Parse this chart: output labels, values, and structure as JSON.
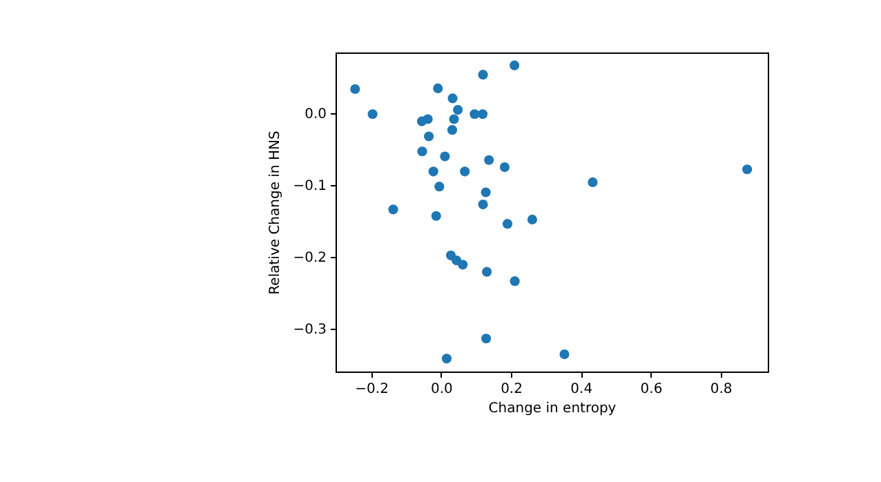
{
  "chart_data": {
    "type": "scatter",
    "xlabel": "Change in entropy",
    "ylabel": "Relative Change in HNS",
    "xlim": [
      -0.302,
      0.935
    ],
    "ylim": [
      -0.36,
      0.085
    ],
    "xticks": [
      {
        "value": -0.2,
        "label": "−0.2"
      },
      {
        "value": 0,
        "label": "0.0"
      },
      {
        "value": 0.2,
        "label": "0.2"
      },
      {
        "value": 0.4,
        "label": "0.4"
      },
      {
        "value": 0.6,
        "label": "0.6"
      },
      {
        "value": 0.8,
        "label": "0.8"
      }
    ],
    "yticks": [
      {
        "value": -0.3,
        "label": "−0.3"
      },
      {
        "value": -0.2,
        "label": "−0.2"
      },
      {
        "value": -0.1,
        "label": "−0.1"
      },
      {
        "value": 0,
        "label": "0.0"
      }
    ],
    "grid": false,
    "marker": "circle",
    "series": [
      {
        "color": "#1f77b4",
        "x": [
          -0.246,
          -0.196,
          -0.009,
          0.12,
          0.21,
          0.033,
          0.048,
          0.037,
          0.032,
          -0.055,
          -0.038,
          0.096,
          0.119,
          -0.035,
          -0.054,
          0.011,
          0.137,
          0.182,
          -0.022,
          0.068,
          -0.005,
          0.128,
          0.12,
          -0.137,
          -0.014,
          0.19,
          0.261,
          0.434,
          0.876,
          0.353,
          0.028,
          0.044,
          0.062,
          0.131,
          0.211,
          0.129,
          0.016
        ],
        "values": [
          0.034,
          -0.001,
          0.035,
          0.054,
          0.067,
          0.021,
          0.005,
          -0.008,
          -0.023,
          -0.011,
          -0.008,
          -0.001,
          -0.001,
          -0.032,
          -0.053,
          -0.06,
          -0.065,
          -0.075,
          -0.081,
          -0.081,
          -0.102,
          -0.11,
          -0.127,
          -0.134,
          -0.143,
          -0.154,
          -0.148,
          -0.096,
          -0.078,
          -0.336,
          -0.198,
          -0.205,
          -0.211,
          -0.221,
          -0.234,
          -0.314,
          -0.342
        ]
      }
    ]
  }
}
